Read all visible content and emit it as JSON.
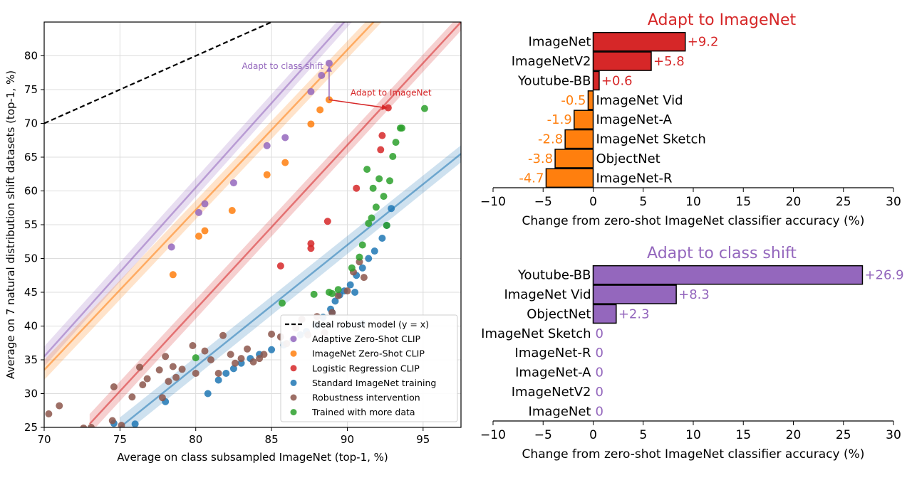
{
  "chart_data": [
    {
      "type": "scatter",
      "xlabel": "Average on class subsampled ImageNet (top-1, %)",
      "ylabel": "Average on 7 natural distribution shift datasets (top-1, %)",
      "xlim": [
        70,
        97.5
      ],
      "ylim": [
        25,
        85
      ],
      "xticks": [
        "70",
        "75",
        "80",
        "85",
        "90",
        "95"
      ],
      "yticks": [
        "25",
        "30",
        "35",
        "40",
        "45",
        "50",
        "55",
        "60",
        "65",
        "70",
        "75",
        "80"
      ],
      "grid": true,
      "legend_position": "lower-right",
      "legend": [
        {
          "label": "Ideal robust model (y = x)",
          "style": "dashed-line",
          "color": "#000000"
        },
        {
          "label": "Adaptive Zero-Shot CLIP",
          "color": "#9467bd"
        },
        {
          "label": "ImageNet Zero-Shot CLIP",
          "color": "#ff7f0e"
        },
        {
          "label": "Logistic Regression CLIP",
          "color": "#d62728"
        },
        {
          "label": "Standard ImageNet training",
          "color": "#1f77b4"
        },
        {
          "label": "Robustness intervention",
          "color": "#8c564b"
        },
        {
          "label": "Trained with more data",
          "color": "#2ca02c"
        }
      ],
      "annotations": [
        {
          "text": "Adapt to class shift",
          "color": "#9467bd",
          "from": [
            88.8,
            73.5
          ],
          "to": [
            88.8,
            78.5
          ]
        },
        {
          "text": "Adapt to ImageNet",
          "color": "#d62728",
          "from": [
            88.8,
            73.5
          ],
          "to": [
            92.7,
            72.3
          ]
        }
      ],
      "fit_lines": [
        {
          "name": "Adaptive Zero-Shot CLIP",
          "color": "#9467bd",
          "x": [
            70,
            91
          ],
          "y": [
            35.5,
            88
          ]
        },
        {
          "name": "ImageNet Zero-Shot CLIP",
          "color": "#ff7f0e",
          "x": [
            70,
            93
          ],
          "y": [
            33.5,
            88
          ]
        },
        {
          "name": "Logistic Regression CLIP",
          "color": "#d62728",
          "x": [
            73,
            97.5
          ],
          "y": [
            25.5,
            85
          ]
        },
        {
          "name": "Standard ImageNet training",
          "color": "#1f77b4",
          "x": [
            75,
            97.5
          ],
          "y": [
            25,
            65.5
          ]
        }
      ],
      "series": [
        {
          "name": "Adaptive Zero-Shot CLIP",
          "color": "#9467bd",
          "points": [
            [
              78.4,
              51.7
            ],
            [
              80.2,
              56.8
            ],
            [
              80.6,
              58.1
            ],
            [
              82.5,
              61.2
            ],
            [
              84.7,
              66.7
            ],
            [
              85.9,
              67.9
            ],
            [
              87.6,
              74.7
            ],
            [
              88.3,
              77.1
            ],
            [
              88.8,
              78.9
            ]
          ]
        },
        {
          "name": "ImageNet Zero-Shot CLIP",
          "color": "#ff7f0e",
          "points": [
            [
              78.5,
              47.6
            ],
            [
              80.2,
              53.3
            ],
            [
              80.6,
              54.1
            ],
            [
              82.4,
              57.1
            ],
            [
              84.7,
              62.4
            ],
            [
              85.9,
              64.2
            ],
            [
              87.6,
              69.9
            ],
            [
              88.2,
              72.0
            ],
            [
              88.8,
              73.5
            ]
          ]
        },
        {
          "name": "Logistic Regression CLIP",
          "color": "#d62728",
          "points": [
            [
              85.6,
              48.9
            ],
            [
              87.6,
              51.5
            ],
            [
              87.6,
              52.2
            ],
            [
              88.7,
              55.5
            ],
            [
              90.6,
              60.4
            ],
            [
              92.2,
              66.1
            ],
            [
              92.3,
              68.2
            ],
            [
              92.7,
              72.3
            ]
          ]
        },
        {
          "name": "Standard ImageNet training",
          "color": "#1f77b4",
          "points": [
            [
              74.6,
              25.6
            ],
            [
              76.0,
              25.5
            ],
            [
              78.0,
              28.8
            ],
            [
              80.8,
              30.0
            ],
            [
              81.5,
              32.0
            ],
            [
              82.0,
              33.0
            ],
            [
              82.5,
              33.7
            ],
            [
              83.0,
              34.5
            ],
            [
              83.6,
              35.2
            ],
            [
              84.2,
              35.8
            ],
            [
              85.0,
              36.5
            ],
            [
              85.8,
              37.2
            ],
            [
              86.4,
              38.0
            ],
            [
              86.9,
              38.7
            ],
            [
              87.3,
              39.2
            ],
            [
              87.9,
              40.2
            ],
            [
              88.4,
              41.3
            ],
            [
              88.9,
              42.5
            ],
            [
              89.2,
              43.7
            ],
            [
              89.5,
              44.6
            ],
            [
              89.8,
              45.2
            ],
            [
              90.2,
              46.1
            ],
            [
              90.6,
              47.5
            ],
            [
              91.0,
              48.6
            ],
            [
              91.4,
              50.0
            ],
            [
              91.8,
              51.1
            ],
            [
              92.3,
              53.0
            ],
            [
              92.6,
              54.9
            ],
            [
              92.9,
              57.4
            ],
            [
              90.0,
              40.1
            ],
            [
              91.0,
              40.4
            ],
            [
              88.0,
              40.0
            ],
            [
              89.0,
              42.0
            ],
            [
              90.5,
              45.0
            ]
          ]
        },
        {
          "name": "Robustness intervention",
          "color": "#8c564b",
          "points": [
            [
              70.3,
              27.0
            ],
            [
              71.0,
              28.2
            ],
            [
              72.6,
              24.9
            ],
            [
              73.1,
              25.0
            ],
            [
              74.5,
              26.0
            ],
            [
              74.6,
              31.0
            ],
            [
              75.1,
              25.3
            ],
            [
              75.8,
              29.5
            ],
            [
              76.3,
              33.9
            ],
            [
              76.5,
              31.3
            ],
            [
              76.8,
              32.2
            ],
            [
              77.6,
              33.5
            ],
            [
              77.8,
              29.4
            ],
            [
              78.0,
              35.5
            ],
            [
              78.2,
              31.8
            ],
            [
              78.5,
              34.0
            ],
            [
              78.7,
              32.4
            ],
            [
              79.1,
              33.6
            ],
            [
              79.8,
              37.1
            ],
            [
              80.0,
              33.0
            ],
            [
              80.6,
              36.3
            ],
            [
              81.0,
              35.0
            ],
            [
              81.5,
              33.0
            ],
            [
              81.8,
              38.6
            ],
            [
              82.3,
              35.8
            ],
            [
              82.6,
              34.5
            ],
            [
              83.0,
              35.2
            ],
            [
              83.4,
              36.6
            ],
            [
              83.8,
              34.7
            ],
            [
              84.2,
              35.2
            ],
            [
              84.5,
              35.8
            ],
            [
              85.0,
              38.8
            ],
            [
              85.6,
              38.4
            ],
            [
              86.0,
              37.4
            ],
            [
              86.6,
              39.7
            ],
            [
              87.0,
              41.0
            ],
            [
              87.4,
              38.7
            ],
            [
              88.0,
              41.4
            ],
            [
              88.5,
              39.0
            ],
            [
              89.0,
              42.0
            ],
            [
              89.4,
              44.5
            ],
            [
              90.0,
              45.2
            ],
            [
              90.4,
              48.0
            ],
            [
              90.8,
              49.5
            ],
            [
              91.1,
              47.2
            ]
          ]
        },
        {
          "name": "Trained with more data",
          "color": "#2ca02c",
          "points": [
            [
              80.0,
              35.3
            ],
            [
              85.7,
              43.4
            ],
            [
              87.8,
              44.7
            ],
            [
              88.8,
              45.0
            ],
            [
              89.0,
              44.8
            ],
            [
              89.4,
              45.4
            ],
            [
              90.3,
              48.6
            ],
            [
              90.8,
              50.2
            ],
            [
              91.0,
              52.0
            ],
            [
              91.4,
              55.2
            ],
            [
              91.6,
              56.0
            ],
            [
              91.9,
              57.6
            ],
            [
              92.4,
              59.2
            ],
            [
              92.6,
              54.9
            ],
            [
              92.8,
              61.5
            ],
            [
              93.0,
              65.1
            ],
            [
              93.2,
              67.2
            ],
            [
              93.5,
              69.3
            ],
            [
              93.6,
              69.3
            ],
            [
              91.3,
              63.2
            ],
            [
              92.1,
              61.8
            ],
            [
              91.7,
              60.4
            ],
            [
              95.1,
              72.2
            ]
          ]
        }
      ]
    },
    {
      "type": "bar",
      "orientation": "horizontal",
      "title": "Adapt to ImageNet",
      "title_color": "#d62728",
      "xlabel": "Change from zero-shot ImageNet classifier accuracy (%)",
      "xlim": [
        -10,
        30
      ],
      "xticks": [
        "−10",
        "−5",
        "0",
        "5",
        "10",
        "15",
        "20",
        "25",
        "30"
      ],
      "categories": [
        "ImageNet",
        "ImageNetV2",
        "Youtube-BB",
        "ImageNet Vid",
        "ImageNet-A",
        "ImageNet Sketch",
        "ObjectNet",
        "ImageNet-R"
      ],
      "values": [
        9.2,
        5.8,
        0.6,
        -0.5,
        -1.9,
        -2.8,
        -3.8,
        -4.7
      ],
      "value_labels": [
        "+9.2",
        "+5.8",
        "+0.6",
        "-0.5",
        "-1.9",
        "-2.8",
        "-3.8",
        "-4.7"
      ],
      "positive_color": "#d62728",
      "negative_color": "#ff7f0e"
    },
    {
      "type": "bar",
      "orientation": "horizontal",
      "title": "Adapt to class shift",
      "title_color": "#9467bd",
      "xlabel": "Change from zero-shot ImageNet classifier accuracy (%)",
      "xlim": [
        -10,
        30
      ],
      "xticks": [
        "−10",
        "−5",
        "0",
        "5",
        "10",
        "15",
        "20",
        "25",
        "30"
      ],
      "categories": [
        "Youtube-BB",
        "ImageNet Vid",
        "ObjectNet",
        "ImageNet Sketch",
        "ImageNet-R",
        "ImageNet-A",
        "ImageNetV2",
        "ImageNet"
      ],
      "values": [
        26.9,
        8.3,
        2.3,
        0,
        0,
        0,
        0,
        0
      ],
      "value_labels": [
        "+26.9",
        "+8.3",
        "+2.3",
        "0",
        "0",
        "0",
        "0",
        "0"
      ],
      "positive_color": "#9467bd",
      "negative_color": "#9467bd"
    }
  ]
}
